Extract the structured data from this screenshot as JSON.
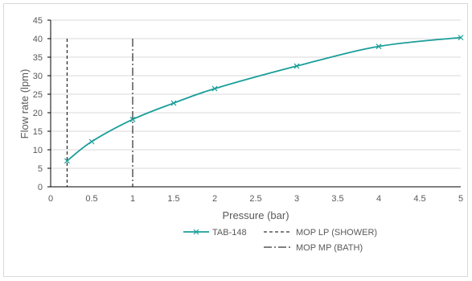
{
  "chart_data": {
    "type": "line",
    "title": "",
    "xlabel": "Pressure (bar)",
    "ylabel": "Flow rate (lpm)",
    "xlim": [
      0,
      5
    ],
    "ylim": [
      0,
      45
    ],
    "x_ticks": [
      0,
      0.5,
      1,
      1.5,
      2,
      2.5,
      3,
      3.5,
      4,
      4.5,
      5
    ],
    "x_tick_labels": [
      "0",
      "0.5",
      "1",
      "1.5",
      "2",
      "2.5",
      "3",
      "3.5",
      "4",
      "4.5",
      "5"
    ],
    "y_ticks": [
      0,
      5,
      10,
      15,
      20,
      25,
      30,
      35,
      40,
      45
    ],
    "y_tick_labels": [
      "0",
      "5",
      "10",
      "15",
      "20",
      "25",
      "30",
      "35",
      "40",
      "45"
    ],
    "grid": "horizontal",
    "legend_position": "bottom",
    "series": [
      {
        "name": "TAB-148",
        "color": "#1a9e9a",
        "marker": "x",
        "x": [
          0.2,
          0.5,
          1,
          1.5,
          2,
          3,
          4,
          5
        ],
        "y": [
          7,
          12.2,
          18.2,
          22.6,
          26.5,
          32.6,
          37.9,
          40.3
        ]
      }
    ],
    "reference_lines": [
      {
        "name": "MOP  LP (SHOWER)",
        "x": 0.2,
        "y_range": [
          0,
          40
        ],
        "style": "dashed",
        "color": "#000000"
      },
      {
        "name": "MOP  MP (BATH)",
        "x": 1,
        "y_range": [
          0,
          40
        ],
        "style": "dashdot",
        "color": "#000000"
      }
    ]
  }
}
